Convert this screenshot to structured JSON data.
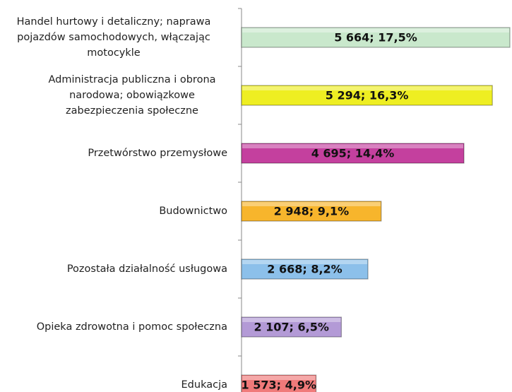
{
  "chart_data": {
    "type": "hbar",
    "categories": [
      "Handel hurtowy i detaliczny; naprawa pojazdów samochodowych, włączając motocykle",
      "Administracja publiczna i obrona narodowa; obowiązkowe zabezpieczenia społeczne",
      "Przetwórstwo przemysłowe",
      "Budownictwo",
      "Pozostała działalność usługowa",
      "Opieka zdrowotna i pomoc społeczna",
      "Edukacja"
    ],
    "values": [
      5664,
      5294,
      4695,
      2948,
      2668,
      2107,
      1573
    ],
    "value_labels": [
      "5 664; 17,5%",
      "5 294; 16,3%",
      "4 695; 14,4%",
      "2 948; 9,1%",
      "2 668; 8,2%",
      "2 107; 6,5%",
      "1 573; 4,9%"
    ],
    "colors": [
      "#c9e8cc",
      "#eeee22",
      "#c4409e",
      "#f7b52c",
      "#8cc0ea",
      "#b39ad6",
      "#f07a7a"
    ]
  }
}
